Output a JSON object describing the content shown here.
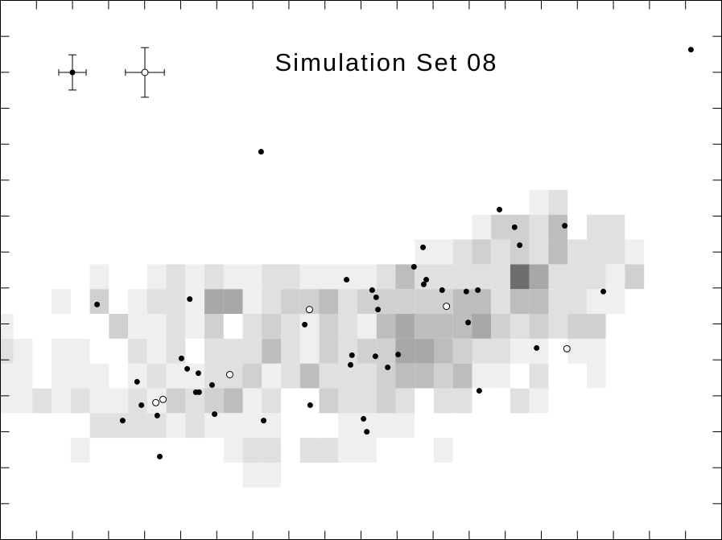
{
  "chart_data": {
    "type": "scatter",
    "title": "Simulation Set 08",
    "xlim": [
      0,
      20
    ],
    "ylim": [
      0,
      15
    ],
    "xticks": [
      1,
      2,
      3,
      4,
      5,
      6,
      7,
      8,
      9,
      10,
      11,
      12,
      13,
      14,
      15,
      16,
      17,
      18,
      19
    ],
    "yticks": [
      1,
      2,
      3,
      4,
      5,
      6,
      7,
      8,
      9,
      10,
      11,
      12,
      13,
      14
    ],
    "heatmap": {
      "xbins": [
        -0.17,
        0.36,
        0.89,
        1.42,
        1.95,
        2.48,
        3.01,
        3.54,
        4.07,
        4.6,
        5.13,
        5.66,
        6.19,
        6.72,
        7.25,
        7.78,
        8.31,
        8.84,
        9.37,
        9.9,
        10.43,
        10.96,
        11.49,
        12.02,
        12.55,
        13.08,
        13.61,
        14.14,
        14.67,
        15.2,
        15.73,
        16.26,
        16.79,
        17.32,
        17.85
      ],
      "ybins": [
        1.45,
        2.14,
        2.83,
        3.52,
        4.21,
        4.9,
        5.59,
        6.28,
        6.97,
        7.66,
        8.35,
        9.04,
        9.73
      ],
      "colors": [
        "#ffffff",
        "#efefef",
        "#e0e0e0",
        "#d0d0d0",
        "#bdbdbd",
        "#a8a8a8",
        "#6e6e6e"
      ],
      "counts": [
        [
          0,
          0,
          0,
          0,
          0,
          0,
          0,
          0,
          0,
          0,
          0,
          0,
          0,
          1,
          1,
          0,
          0,
          0,
          0,
          0,
          0,
          0,
          0,
          0,
          0,
          0,
          0,
          0,
          0,
          0,
          0,
          0,
          0,
          0
        ],
        [
          0,
          0,
          0,
          0,
          1,
          0,
          0,
          0,
          0,
          0,
          0,
          0,
          1,
          2,
          2,
          0,
          2,
          2,
          1,
          1,
          0,
          0,
          0,
          1,
          0,
          0,
          0,
          0,
          0,
          0,
          0,
          0,
          0,
          0
        ],
        [
          0,
          0,
          0,
          0,
          0,
          2,
          2,
          2,
          2,
          1,
          2,
          1,
          1,
          1,
          1,
          0,
          0,
          0,
          1,
          1,
          1,
          1,
          0,
          0,
          0,
          0,
          0,
          0,
          0,
          0,
          0,
          0,
          0,
          0
        ],
        [
          1,
          1,
          2,
          1,
          2,
          1,
          1,
          2,
          1,
          3,
          2,
          3,
          4,
          1,
          2,
          0,
          0,
          3,
          2,
          2,
          3,
          2,
          0,
          2,
          2,
          0,
          0,
          2,
          1,
          0,
          0,
          0,
          0,
          0
        ],
        [
          1,
          1,
          0,
          1,
          1,
          1,
          0,
          1,
          2,
          1,
          1,
          2,
          2,
          3,
          1,
          2,
          4,
          2,
          2,
          2,
          3,
          4,
          4,
          3,
          4,
          1,
          1,
          0,
          2,
          0,
          0,
          1,
          0,
          0
        ],
        [
          2,
          1,
          0,
          1,
          1,
          0,
          0,
          2,
          1,
          2,
          0,
          2,
          2,
          2,
          4,
          2,
          1,
          3,
          2,
          3,
          3,
          5,
          5,
          4,
          3,
          2,
          2,
          1,
          1,
          0,
          1,
          1,
          0,
          0
        ],
        [
          1,
          0,
          0,
          0,
          0,
          0,
          3,
          1,
          1,
          2,
          1,
          3,
          0,
          2,
          3,
          2,
          1,
          3,
          2,
          1,
          4,
          5,
          4,
          4,
          4,
          5,
          3,
          2,
          3,
          2,
          3,
          3,
          0,
          0
        ],
        [
          0,
          0,
          0,
          1,
          0,
          3,
          0,
          1,
          2,
          2,
          1,
          5,
          5,
          1,
          2,
          3,
          3,
          4,
          2,
          3,
          3,
          3,
          3,
          3,
          4,
          4,
          2,
          4,
          4,
          2,
          2,
          1,
          1,
          0
        ],
        [
          0,
          0,
          0,
          0,
          0,
          1,
          0,
          0,
          1,
          2,
          1,
          2,
          1,
          1,
          2,
          2,
          1,
          1,
          1,
          1,
          2,
          4,
          2,
          2,
          2,
          2,
          2,
          6,
          5,
          2,
          2,
          2,
          1,
          3
        ],
        [
          0,
          0,
          0,
          0,
          0,
          0,
          0,
          0,
          0,
          0,
          0,
          0,
          0,
          0,
          0,
          0,
          0,
          0,
          0,
          0,
          0,
          0,
          1,
          1,
          2,
          3,
          2,
          3,
          2,
          4,
          2,
          2,
          2,
          1
        ],
        [
          0,
          0,
          0,
          0,
          0,
          0,
          0,
          0,
          0,
          0,
          0,
          0,
          0,
          0,
          0,
          0,
          0,
          0,
          0,
          0,
          0,
          0,
          0,
          0,
          0,
          1,
          3,
          3,
          2,
          4,
          0,
          2,
          2,
          0
        ],
        [
          0,
          0,
          0,
          0,
          0,
          0,
          0,
          0,
          0,
          0,
          0,
          0,
          0,
          0,
          0,
          0,
          0,
          0,
          0,
          0,
          0,
          0,
          0,
          0,
          0,
          0,
          0,
          0,
          1,
          2,
          0,
          0,
          0,
          0
        ]
      ]
    },
    "series": [
      {
        "color": "#000000",
        "filled": true,
        "xerr": 0.38,
        "yerr": 0.49,
        "x": [
          19.15,
          7.23,
          13.84,
          14.26,
          15.65,
          14.4,
          11.72,
          11.47,
          11.81,
          11.74,
          9.6,
          10.31,
          10.42,
          10.47,
          12.25,
          12.92,
          13.24,
          16.72,
          2.68,
          5.25,
          8.44,
          12.97,
          14.87,
          9.75,
          10.4,
          11.03,
          9.71,
          10.74,
          5.02,
          5.18,
          5.49,
          3.79,
          5.87,
          5.42,
          5.51,
          13.28,
          3.91,
          8.59,
          5.94,
          3.39,
          4.35,
          7.3,
          10.07,
          10.16,
          4.42
        ],
        "values": [
          13.63,
          10.79,
          9.18,
          8.69,
          8.73,
          8.19,
          8.13,
          7.59,
          7.23,
          7.1,
          7.23,
          6.94,
          6.74,
          6.4,
          6.94,
          6.9,
          6.94,
          6.9,
          6.54,
          6.69,
          5.98,
          6.04,
          5.33,
          5.13,
          5.1,
          5.15,
          4.86,
          4.79,
          5.04,
          4.75,
          4.63,
          4.39,
          4.3,
          4.1,
          4.1,
          4.14,
          3.74,
          3.74,
          3.49,
          3.31,
          3.45,
          3.31,
          3.36,
          3.0,
          2.31
        ]
      },
      {
        "color": "#000000",
        "filled": false,
        "xerr": 0.54,
        "yerr": 0.69,
        "x": [
          8.57,
          12.37,
          6.36,
          4.31,
          4.51,
          15.71
        ],
        "values": [
          6.4,
          6.49,
          4.59,
          3.81,
          3.9,
          5.31
        ]
      }
    ]
  }
}
